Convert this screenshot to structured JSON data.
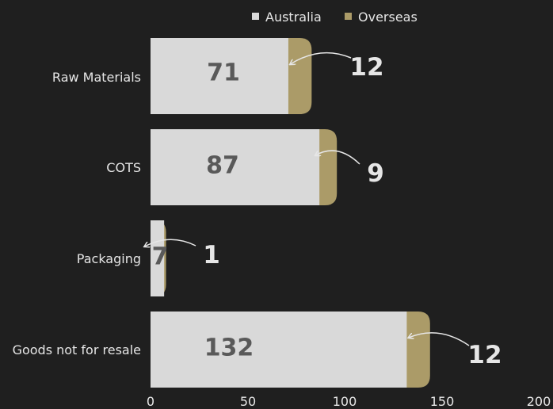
{
  "chart_data": {
    "type": "bar",
    "orientation": "horizontal",
    "stacked": true,
    "categories": [
      "Raw Materials",
      "COTS",
      "Packaging",
      "Goods not for resale"
    ],
    "series": [
      {
        "name": "Australia",
        "values": [
          71,
          87,
          7,
          132
        ],
        "color": "#d9d9d9"
      },
      {
        "name": "Overseas",
        "values": [
          12,
          9,
          1,
          12
        ],
        "color": "#ab9b68"
      }
    ],
    "xlim": [
      0,
      200
    ],
    "xticks": [
      0,
      50,
      100,
      150,
      200
    ],
    "legend_position": "top",
    "grid": false,
    "title": "",
    "xlabel": "",
    "ylabel": ""
  },
  "colors": {
    "background": "#1f1f1f",
    "text": "#e6e6e6",
    "inside_label": "#595959"
  }
}
